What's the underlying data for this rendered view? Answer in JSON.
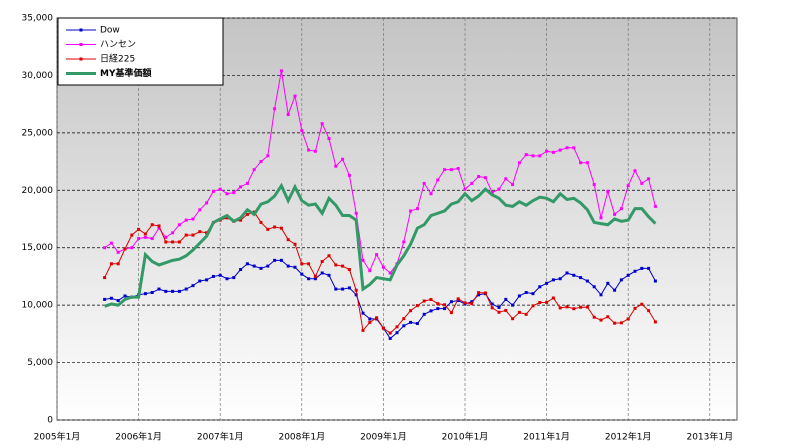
{
  "chart_data": {
    "type": "line",
    "x": [
      "2005-08",
      "2005-09",
      "2005-10",
      "2005-11",
      "2005-12",
      "2006-01",
      "2006-02",
      "2006-03",
      "2006-04",
      "2006-05",
      "2006-06",
      "2006-07",
      "2006-08",
      "2006-09",
      "2006-10",
      "2006-11",
      "2006-12",
      "2007-01",
      "2007-02",
      "2007-03",
      "2007-04",
      "2007-05",
      "2007-06",
      "2007-07",
      "2007-08",
      "2007-09",
      "2007-10",
      "2007-11",
      "2007-12",
      "2008-01",
      "2008-02",
      "2008-03",
      "2008-04",
      "2008-05",
      "2008-06",
      "2008-07",
      "2008-08",
      "2008-09",
      "2008-10",
      "2008-11",
      "2008-12",
      "2009-01",
      "2009-02",
      "2009-03",
      "2009-04",
      "2009-05",
      "2009-06",
      "2009-07",
      "2009-08",
      "2009-09",
      "2009-10",
      "2009-11",
      "2009-12",
      "2010-01",
      "2010-02",
      "2010-03",
      "2010-04",
      "2010-05",
      "2010-06",
      "2010-07",
      "2010-08",
      "2010-09",
      "2010-10",
      "2010-11",
      "2010-12",
      "2011-01",
      "2011-02",
      "2011-03",
      "2011-04",
      "2011-05",
      "2011-06",
      "2011-07",
      "2011-08",
      "2011-09",
      "2011-10",
      "2011-11",
      "2011-12",
      "2012-01",
      "2012-02",
      "2012-03",
      "2012-04",
      "2012-05"
    ],
    "series": [
      {
        "name": "Dow",
        "color": "#0000cc",
        "markers": true,
        "width": 1,
        "values": [
          10500,
          10600,
          10400,
          10800,
          10700,
          10900,
          11000,
          11100,
          11400,
          11200,
          11200,
          11200,
          11400,
          11700,
          12100,
          12200,
          12500,
          12600,
          12300,
          12400,
          13100,
          13600,
          13400,
          13200,
          13400,
          13900,
          13900,
          13400,
          13300,
          12700,
          12300,
          12300,
          12800,
          12600,
          11400,
          11400,
          11500,
          10900,
          9300,
          8800,
          8800,
          8000,
          7100,
          7600,
          8200,
          8500,
          8400,
          9200,
          9500,
          9700,
          9700,
          10300,
          10400,
          10100,
          10300,
          10900,
          11000,
          10100,
          9800,
          10500,
          10000,
          10800,
          11100,
          11000,
          11600,
          11900,
          12200,
          12300,
          12800,
          12600,
          12400,
          12100,
          11600,
          10900,
          11900,
          11300,
          12200,
          12600,
          12950,
          13200,
          13200,
          12100
        ]
      },
      {
        "name": "ハンセン",
        "color": "#ff00ff",
        "markers": true,
        "width": 1,
        "values": [
          15000,
          15400,
          14600,
          14900,
          15000,
          15800,
          15900,
          15800,
          16700,
          15900,
          16300,
          17000,
          17400,
          17500,
          18300,
          18900,
          19900,
          20100,
          19700,
          19800,
          20300,
          20600,
          21800,
          22500,
          23000,
          27100,
          30400,
          26600,
          28200,
          25200,
          23500,
          23400,
          25800,
          24500,
          22100,
          22700,
          21300,
          18000,
          13900,
          13000,
          14400,
          13300,
          12800,
          13600,
          15500,
          18200,
          18400,
          20600,
          19700,
          20900,
          21800,
          21800,
          21900,
          20100,
          20600,
          21200,
          21100,
          19800,
          20100,
          21000,
          20500,
          22400,
          23100,
          23000,
          23000,
          23400,
          23300,
          23500,
          23700,
          23700,
          22400,
          22400,
          20500,
          17600,
          19900,
          17900,
          18400,
          20400,
          21700,
          20600,
          21000,
          18600
        ]
      },
      {
        "name": "日経225",
        "color": "#dd0000",
        "markers": true,
        "width": 1,
        "values": [
          12400,
          13600,
          13600,
          14900,
          16100,
          16600,
          16200,
          17000,
          16900,
          15500,
          15500,
          15500,
          16100,
          16100,
          16400,
          16300,
          17200,
          17400,
          17600,
          17300,
          17400,
          17900,
          18100,
          17200,
          16600,
          16800,
          16700,
          15700,
          15300,
          13600,
          13600,
          12500,
          13800,
          14300,
          13500,
          13400,
          13100,
          11300,
          7800,
          8500,
          8900,
          7990,
          7570,
          8110,
          8830,
          9520,
          9960,
          10360,
          10490,
          10130,
          10030,
          9350,
          10550,
          10200,
          10130,
          11090,
          11060,
          9770,
          9380,
          9540,
          8820,
          9370,
          9200,
          9940,
          10230,
          10240,
          10620,
          9760,
          9850,
          9690,
          9820,
          9830,
          8950,
          8700,
          8990,
          8430,
          8460,
          8800,
          9720,
          10080,
          9520,
          8540
        ]
      },
      {
        "name": "MY基準価額",
        "color": "#339966",
        "markers": false,
        "width": 3,
        "values": [
          9900,
          10100,
          10000,
          10500,
          10700,
          10700,
          14400,
          13800,
          13500,
          13700,
          13900,
          14000,
          14300,
          14800,
          15400,
          16000,
          17200,
          17500,
          17800,
          17300,
          17600,
          18300,
          17900,
          18800,
          19000,
          19500,
          20400,
          19100,
          20300,
          19100,
          18700,
          18800,
          18000,
          19300,
          18700,
          17800,
          17800,
          17400,
          11400,
          11800,
          12400,
          12300,
          12200,
          13500,
          14300,
          15300,
          16700,
          17000,
          17800,
          18000,
          18200,
          18800,
          19000,
          19700,
          19100,
          19500,
          20100,
          19600,
          19300,
          18700,
          18600,
          19000,
          18700,
          19100,
          19400,
          19300,
          19000,
          19700,
          19200,
          19300,
          18900,
          18300,
          17200,
          17100,
          17000,
          17500,
          17300,
          17400,
          18400,
          18400,
          17700,
          17100
        ]
      }
    ],
    "xlim": [
      "2005-01",
      "2013-05"
    ],
    "xticks": [
      {
        "value": "2005-01",
        "label": "2005年1月"
      },
      {
        "value": "2006-01",
        "label": "2006年1月"
      },
      {
        "value": "2007-01",
        "label": "2007年1月"
      },
      {
        "value": "2008-01",
        "label": "2008年1月"
      },
      {
        "value": "2009-01",
        "label": "2009年1月"
      },
      {
        "value": "2010-01",
        "label": "2010年1月"
      },
      {
        "value": "2011-01",
        "label": "2011年1月"
      },
      {
        "value": "2012-01",
        "label": "2012年1月"
      },
      {
        "value": "2013-01",
        "label": "2013年1月"
      }
    ],
    "ylim": [
      0,
      35000
    ],
    "yticks": [
      0,
      {
        "value": 5000,
        "label": "5,000"
      },
      {
        "value": 10000,
        "label": "10,000"
      },
      {
        "value": 15000,
        "label": "15,000"
      },
      {
        "value": 20000,
        "label": "20,000"
      },
      {
        "value": 25000,
        "label": "25,000"
      },
      {
        "value": 30000,
        "label": "30,000"
      },
      {
        "value": 35000,
        "label": "35,000"
      }
    ],
    "grid": true,
    "legend": "upper left"
  }
}
